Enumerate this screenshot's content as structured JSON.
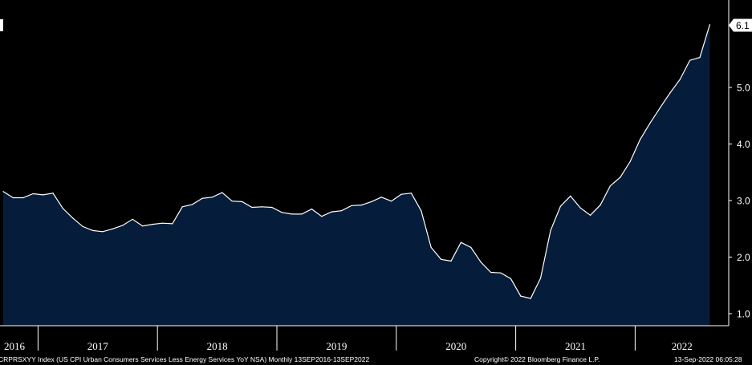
{
  "chart_data": {
    "type": "area",
    "x_start": "2016-09",
    "frequency": "monthly",
    "x_ticks": [
      "2016",
      "2017",
      "2018",
      "2019",
      "2020",
      "2021",
      "2022"
    ],
    "y_ticks": [
      "1.0",
      "2.0",
      "3.0",
      "4.0",
      "5.0",
      "6.1"
    ],
    "ylim": [
      0.8,
      6.4
    ],
    "last_value_label": "6.1",
    "values": [
      3.16,
      3.05,
      3.05,
      3.12,
      3.1,
      3.13,
      2.86,
      2.69,
      2.54,
      2.47,
      2.45,
      2.5,
      2.56,
      2.67,
      2.55,
      2.58,
      2.6,
      2.59,
      2.89,
      2.93,
      3.04,
      3.06,
      3.14,
      2.99,
      2.98,
      2.88,
      2.89,
      2.88,
      2.79,
      2.76,
      2.76,
      2.85,
      2.72,
      2.8,
      2.82,
      2.91,
      2.92,
      2.98,
      3.06,
      2.99,
      3.11,
      3.13,
      2.82,
      2.17,
      1.96,
      1.93,
      2.26,
      2.17,
      1.91,
      1.73,
      1.72,
      1.62,
      1.31,
      1.27,
      1.63,
      2.47,
      2.9,
      3.08,
      2.87,
      2.74,
      2.92,
      3.26,
      3.41,
      3.69,
      4.08,
      4.37,
      4.64,
      4.9,
      5.14,
      5.48,
      5.53,
      6.11
    ],
    "colors": {
      "fill": "#051d3a",
      "line": "#ffffff",
      "background": "#000000",
      "axis": "#ffffff"
    },
    "grid": false
  },
  "footer": {
    "security": "CRPRSXYY Index (US CPI Urban Consumers Services Less Energy Services YoY NSA)  Monthly 13SEP2016-13SEP2022",
    "copyright": "Copyright© 2022 Bloomberg Finance L.P.",
    "timestamp": "13-Sep-2022 06:05:28"
  }
}
